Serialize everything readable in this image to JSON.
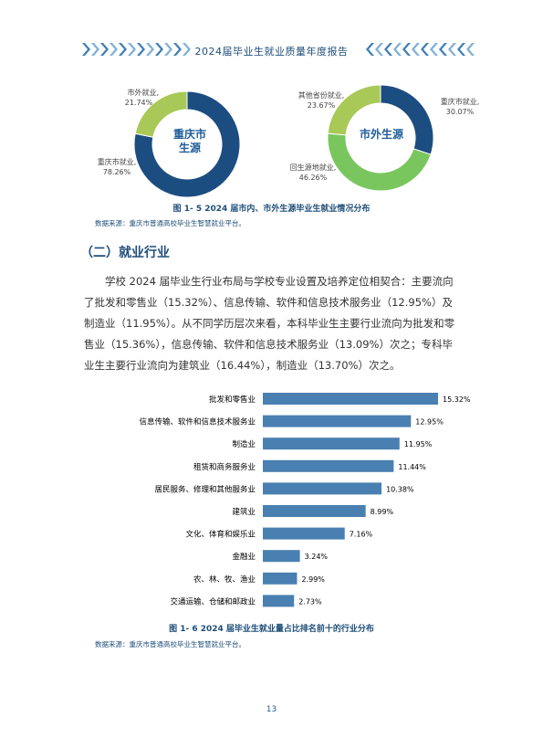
{
  "header": {
    "title": "2024届毕业生就业质量年度报告"
  },
  "donut_left": {
    "center": [
      "重庆市",
      "生源"
    ],
    "labels": [
      {
        "name": "市外就业,",
        "pct": "21.74%"
      },
      {
        "name": "重庆市就业,",
        "pct": "78.26%"
      }
    ],
    "colors": {
      "chongqing": "#1c4d80",
      "outside": "#a8c957"
    }
  },
  "donut_right": {
    "center": [
      "市外生源"
    ],
    "labels": [
      {
        "name": "其他省份就业,",
        "pct": "23.67%"
      },
      {
        "name": "重庆市就业,",
        "pct": "30.07%"
      },
      {
        "name": "回生源地就业,",
        "pct": "46.26%"
      }
    ],
    "colors": {
      "chongqing": "#1c4d80",
      "home": "#7ac65e",
      "other": "#a8c957"
    }
  },
  "figure1": {
    "caption": "图 1- 5  2024 届市内、市外生源毕业生就业情况分布",
    "source": "数据来源：重庆市普通高校毕业生智慧就业平台。"
  },
  "section": {
    "title": "（二）就业行业"
  },
  "paragraph": "学校 2024 届毕业生行业布局与学校专业设置及培养定位相契合：主要流向了批发和零售业（15.32%）、信息传输、软件和信息技术服务业（12.95%）及制造业（11.95%）。从不同学历层次来看，本科毕业生主要行业流向为批发和零售业（15.36%），信息传输、软件和信息技术服务业（13.09%）次之；专科毕业生主要行业流向为建筑业（16.44%），制造业（13.70%）次之。",
  "chart_data": [
    {
      "type": "pie",
      "title": "重庆市生源",
      "categories": [
        "重庆市就业",
        "市外就业"
      ],
      "values": [
        78.26,
        21.74
      ]
    },
    {
      "type": "pie",
      "title": "市外生源",
      "categories": [
        "重庆市就业",
        "回生源地就业",
        "其他省份就业"
      ],
      "values": [
        30.07,
        46.26,
        23.67
      ]
    },
    {
      "type": "bar",
      "orientation": "horizontal",
      "categories": [
        "批发和零售业",
        "信息传输、软件和信息技术服务业",
        "制造业",
        "租赁和商务服务业",
        "居民服务、修理和其他服务业",
        "建筑业",
        "文化、体育和娱乐业",
        "金融业",
        "农、林、牧、渔业",
        "交通运输、仓储和邮政业"
      ],
      "values": [
        15.32,
        12.95,
        11.95,
        11.44,
        10.38,
        8.99,
        7.16,
        3.24,
        2.99,
        2.73
      ],
      "value_labels": [
        "15.32%",
        "12.95%",
        "11.95%",
        "11.44%",
        "10.38%",
        "8.99%",
        "7.16%",
        "3.24%",
        "2.99%",
        "2.73%"
      ],
      "color": "#4a7fb1"
    }
  ],
  "figure2": {
    "caption": "图 1- 6  2024 届毕业生就业量占比排名前十的行业分布",
    "source": "数据来源：重庆市普通高校毕业生智慧就业平台。"
  },
  "page": {
    "number": "13"
  }
}
